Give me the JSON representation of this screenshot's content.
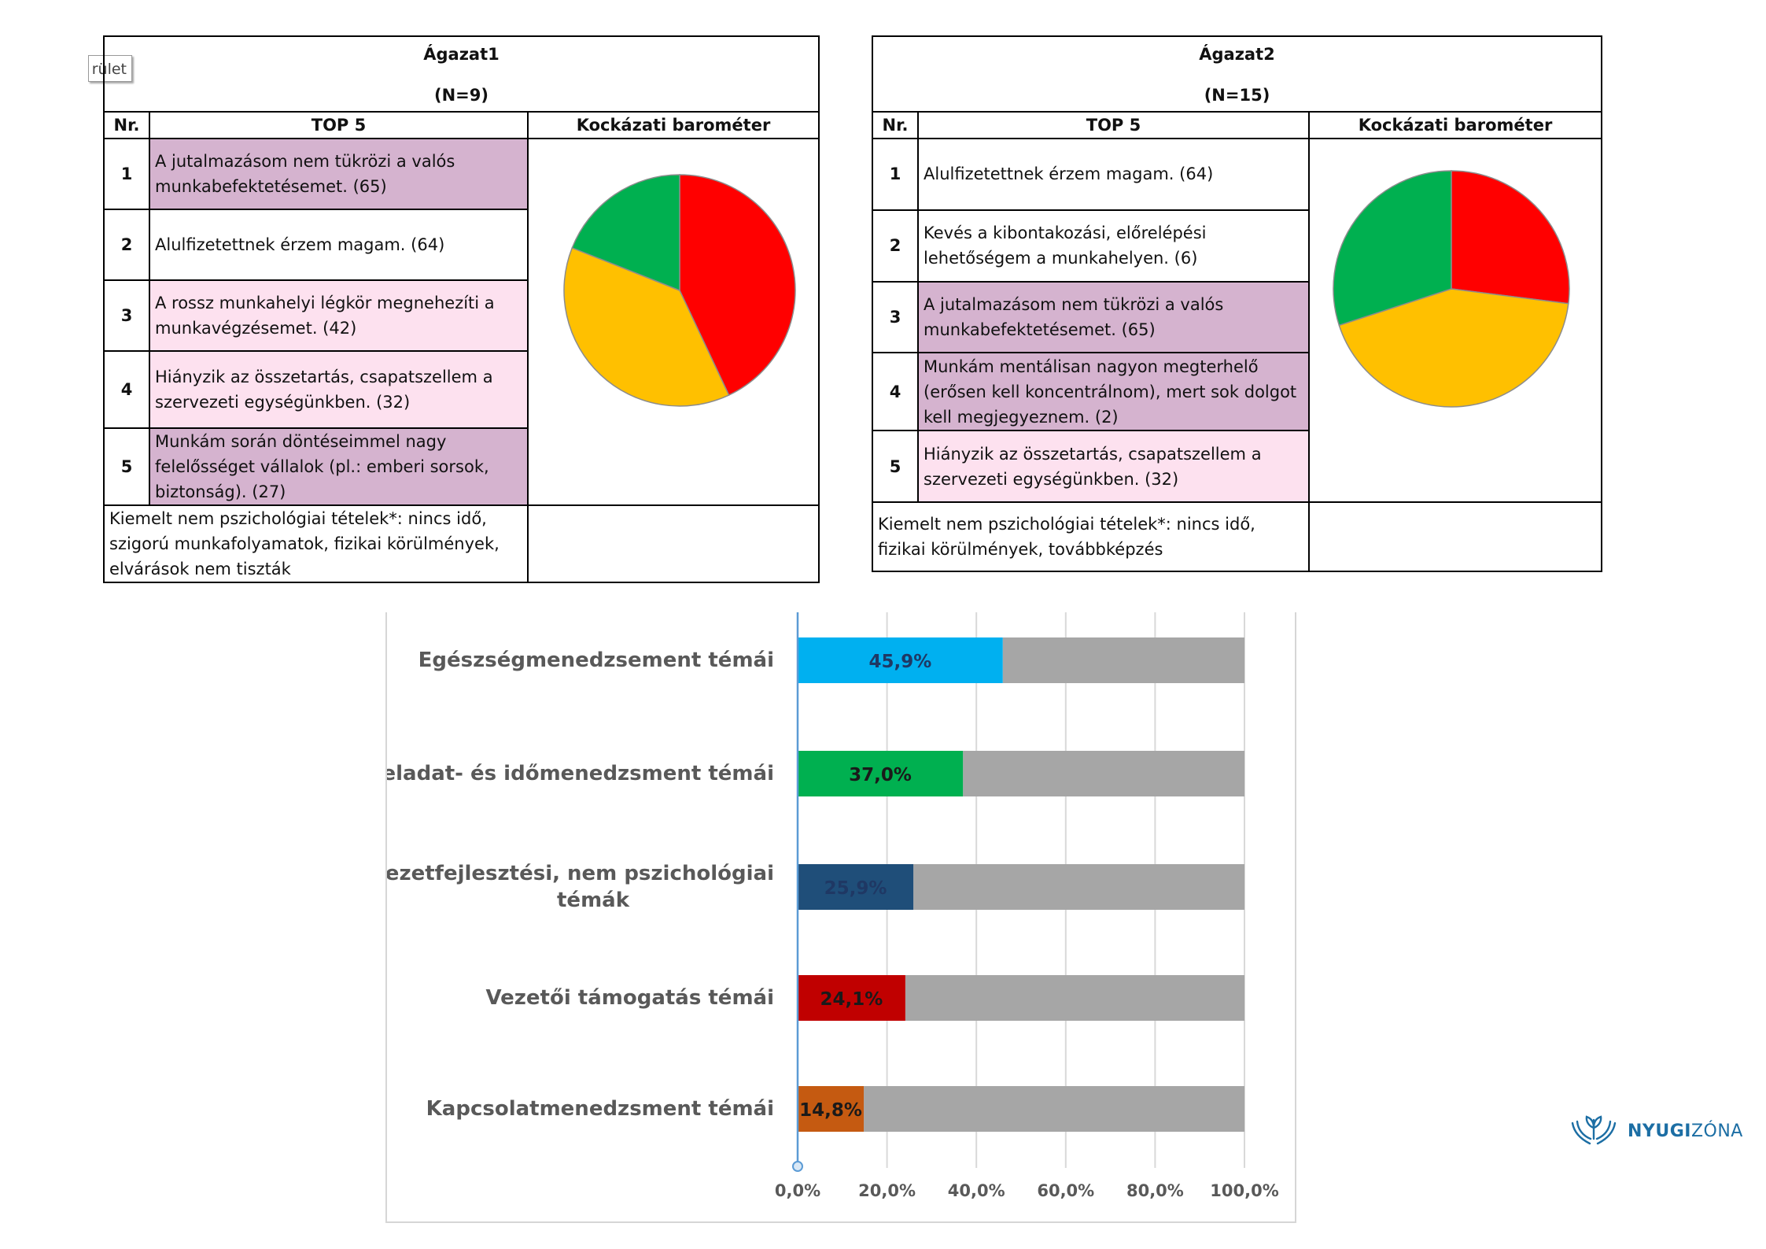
{
  "colors": {
    "red": "#ff0000",
    "amber": "#ffc000",
    "green": "#00b050",
    "purple_row": "#d5b3cf",
    "pink_row": "#fde1ef",
    "bar_rest": "#a6a6a6",
    "axis_line": "#5b9bd5",
    "logo": "#1c6ea4"
  },
  "tag_text": "rület",
  "headers": {
    "nr": "Nr.",
    "top5": "TOP 5",
    "barometer": "Kockázati barométer"
  },
  "panel1": {
    "title": "Ágazat1",
    "n": "(N=9)",
    "rows": [
      {
        "nr": "1",
        "text": "A jutalmazásom nem tükrözi a valós munkabefektetésemet. (65)",
        "color": "purple"
      },
      {
        "nr": "2",
        "text": "Alulfizetettnek érzem magam. (64)",
        "color": "white"
      },
      {
        "nr": "3",
        "text": "A rossz munkahelyi légkör megnehezíti a munkavégzésemet. (42)",
        "color": "pink"
      },
      {
        "nr": "4",
        "text": "Hiányzik az összetartás, csapatszellem a szervezeti egységünkben. (32)",
        "color": "pink"
      },
      {
        "nr": "5",
        "text": "Munkám során döntéseimmel nagy felelősséget vállalok (pl.: emberi sorsok, biztonság). (27)",
        "color": "purple"
      }
    ],
    "note": "Kiemelt nem pszichológiai tételek*: nincs idő, szigorú munkafolyamatok, fizikai körülmények, elvárások nem tiszták"
  },
  "panel2": {
    "title": "Ágazat2",
    "n": "(N=15)",
    "rows": [
      {
        "nr": "1",
        "text": "Alulfizetettnek érzem magam. (64)",
        "color": "white"
      },
      {
        "nr": "2",
        "text": "Kevés a kibontakozási, előrelépési lehetőségem a munkahelyen. (6)",
        "color": "white"
      },
      {
        "nr": "3",
        "text": "A jutalmazásom nem tükrözi a valós munkabefektetésemet. (65)",
        "color": "purple"
      },
      {
        "nr": "4",
        "text": "Munkám mentálisan nagyon megterhelő (erősen kell koncentrálnom), mert sok dolgot kell megjegyeznem.  (2)",
        "color": "purple"
      },
      {
        "nr": "5",
        "text": "Hiányzik az összetartás, csapatszellem a szervezeti egységünkben. (32)",
        "color": "pink"
      }
    ],
    "note": "Kiemelt nem pszichológiai tételek*: nincs idő, fizikai körülmények, továbbképzés"
  },
  "chart_data": [
    {
      "type": "pie",
      "values": [
        43,
        38,
        19
      ],
      "colors": [
        "#ff0000",
        "#ffc000",
        "#00b050"
      ]
    },
    {
      "type": "pie",
      "values": [
        27,
        43,
        30
      ],
      "colors": [
        "#ff0000",
        "#ffc000",
        "#00b050"
      ]
    },
    {
      "type": "bar",
      "orientation": "horizontal",
      "stacked": true,
      "categories": [
        "Egészségmenedzsement témái",
        "Feladat- és időmenedzsment témái",
        "Szervezetfejlesztési, nem pszichológiai témák",
        "Vezetői támogatás témái",
        "Kapcsolatmenedzsment témái"
      ],
      "category_lines": [
        [
          "Egészségmenedzsement témái"
        ],
        [
          "Feladat- és időmenedzsment témái"
        ],
        [
          "Szervezetfejlesztési, nem pszichológiai",
          "témák"
        ],
        [
          "Vezetői támogatás témái"
        ],
        [
          "Kapcsolatmenedzsment témái"
        ]
      ],
      "values": [
        45.9,
        37.0,
        25.9,
        24.1,
        14.8
      ],
      "data_labels": [
        "45,9%",
        "37,0%",
        "25,9%",
        "24,1%",
        "14,8%"
      ],
      "bar_colors": [
        "#00b0f0",
        "#00b050",
        "#1f4e79",
        "#c00000",
        "#c55a11"
      ],
      "label_colors": [
        "#1f3864",
        "#1a1a1a",
        "#1f3864",
        "#1a1a1a",
        "#1a1a1a"
      ],
      "rest_color": "#a6a6a6",
      "xlim": [
        0,
        100
      ],
      "xticks": [
        0,
        20,
        40,
        60,
        80,
        100
      ],
      "xtick_labels": [
        "0,0%",
        "20,0%",
        "40,0%",
        "60,0%",
        "80,0%",
        "100,0%"
      ],
      "grid": true
    }
  ],
  "logo": {
    "bold": "NYUGI",
    "light": "ZÓNA"
  }
}
